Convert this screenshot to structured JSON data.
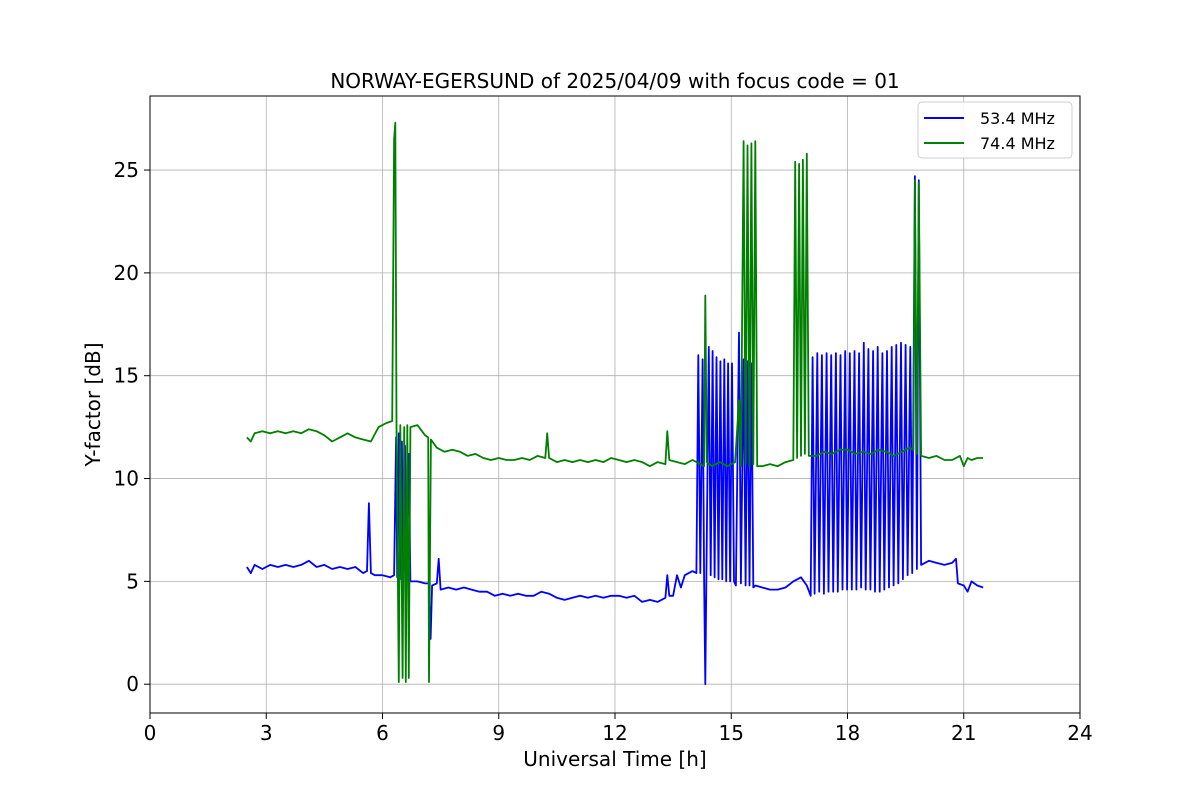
{
  "chart_data": {
    "type": "line",
    "title": "NORWAY-EGERSUND of 2025/04/09 with focus code = 01",
    "xlabel": "Universal Time [h]",
    "ylabel": "Y-factor [dB]",
    "xlim": [
      0,
      24
    ],
    "ylim": [
      -1.4,
      28.6
    ],
    "xticks": [
      0,
      3,
      6,
      9,
      12,
      15,
      18,
      21,
      24
    ],
    "yticks": [
      0,
      5,
      10,
      15,
      20,
      25
    ],
    "grid": true,
    "legend": "top-right",
    "series": [
      {
        "name": "53.4 MHz",
        "color": "#0000ff",
        "points": [
          [
            2.5,
            5.7
          ],
          [
            2.6,
            5.4
          ],
          [
            2.7,
            5.8
          ],
          [
            2.9,
            5.6
          ],
          [
            3.1,
            5.8
          ],
          [
            3.3,
            5.7
          ],
          [
            3.5,
            5.8
          ],
          [
            3.7,
            5.7
          ],
          [
            3.9,
            5.8
          ],
          [
            4.1,
            6.0
          ],
          [
            4.3,
            5.7
          ],
          [
            4.5,
            5.8
          ],
          [
            4.7,
            5.6
          ],
          [
            4.9,
            5.7
          ],
          [
            5.1,
            5.6
          ],
          [
            5.3,
            5.7
          ],
          [
            5.5,
            5.4
          ],
          [
            5.6,
            5.5
          ],
          [
            5.65,
            8.8
          ],
          [
            5.7,
            5.4
          ],
          [
            5.8,
            5.3
          ],
          [
            6.0,
            5.3
          ],
          [
            6.2,
            5.2
          ],
          [
            6.3,
            5.3
          ],
          [
            6.35,
            12.0
          ],
          [
            6.38,
            5.2
          ],
          [
            6.42,
            12.2
          ],
          [
            6.45,
            5.1
          ],
          [
            6.5,
            11.8
          ],
          [
            6.53,
            5.0
          ],
          [
            6.58,
            11.6
          ],
          [
            6.62,
            5.1
          ],
          [
            6.68,
            11.2
          ],
          [
            6.72,
            5.0
          ],
          [
            6.9,
            5.0
          ],
          [
            7.1,
            4.9
          ],
          [
            7.2,
            4.9
          ],
          [
            7.24,
            2.2
          ],
          [
            7.28,
            4.8
          ],
          [
            7.4,
            4.9
          ],
          [
            7.45,
            6.1
          ],
          [
            7.5,
            4.6
          ],
          [
            7.7,
            4.7
          ],
          [
            7.9,
            4.6
          ],
          [
            8.1,
            4.7
          ],
          [
            8.3,
            4.6
          ],
          [
            8.5,
            4.5
          ],
          [
            8.7,
            4.5
          ],
          [
            8.9,
            4.3
          ],
          [
            9.1,
            4.4
          ],
          [
            9.3,
            4.3
          ],
          [
            9.5,
            4.4
          ],
          [
            9.7,
            4.3
          ],
          [
            9.9,
            4.3
          ],
          [
            10.1,
            4.5
          ],
          [
            10.3,
            4.4
          ],
          [
            10.5,
            4.2
          ],
          [
            10.7,
            4.1
          ],
          [
            10.9,
            4.2
          ],
          [
            11.1,
            4.3
          ],
          [
            11.3,
            4.2
          ],
          [
            11.5,
            4.3
          ],
          [
            11.7,
            4.2
          ],
          [
            11.9,
            4.3
          ],
          [
            12.1,
            4.3
          ],
          [
            12.3,
            4.2
          ],
          [
            12.5,
            4.3
          ],
          [
            12.7,
            4.0
          ],
          [
            12.9,
            4.1
          ],
          [
            13.1,
            4.0
          ],
          [
            13.3,
            4.2
          ],
          [
            13.35,
            5.3
          ],
          [
            13.4,
            4.3
          ],
          [
            13.5,
            4.3
          ],
          [
            13.6,
            5.3
          ],
          [
            13.7,
            4.7
          ],
          [
            13.8,
            5.3
          ],
          [
            14.0,
            5.5
          ],
          [
            14.1,
            5.4
          ],
          [
            14.15,
            16.0
          ],
          [
            14.2,
            5.4
          ],
          [
            14.26,
            15.8
          ],
          [
            14.3,
            5.1
          ],
          [
            14.33,
            0.0
          ],
          [
            14.36,
            5.3
          ],
          [
            14.42,
            16.4
          ],
          [
            14.47,
            5.3
          ],
          [
            14.52,
            16.2
          ],
          [
            14.57,
            5.2
          ],
          [
            14.62,
            15.9
          ],
          [
            14.67,
            5.1
          ],
          [
            14.72,
            15.7
          ],
          [
            14.77,
            5.1
          ],
          [
            14.82,
            15.8
          ],
          [
            14.87,
            5.0
          ],
          [
            14.92,
            15.6
          ],
          [
            14.97,
            5.0
          ],
          [
            15.02,
            15.6
          ],
          [
            15.07,
            5.0
          ],
          [
            15.12,
            4.8
          ],
          [
            15.2,
            17.1
          ],
          [
            15.25,
            4.9
          ],
          [
            15.32,
            15.8
          ],
          [
            15.37,
            4.8
          ],
          [
            15.42,
            15.7
          ],
          [
            15.47,
            4.8
          ],
          [
            15.52,
            15.6
          ],
          [
            15.57,
            4.7
          ],
          [
            15.62,
            4.8
          ],
          [
            15.8,
            4.7
          ],
          [
            16.0,
            4.6
          ],
          [
            16.2,
            4.6
          ],
          [
            16.4,
            4.7
          ],
          [
            16.6,
            5.0
          ],
          [
            16.8,
            5.2
          ],
          [
            16.95,
            4.8
          ],
          [
            17.05,
            4.3
          ],
          [
            17.1,
            15.9
          ],
          [
            17.15,
            4.4
          ],
          [
            17.22,
            16.1
          ],
          [
            17.27,
            4.5
          ],
          [
            17.34,
            16.0
          ],
          [
            17.39,
            4.4
          ],
          [
            17.46,
            16.1
          ],
          [
            17.51,
            4.5
          ],
          [
            17.58,
            16.0
          ],
          [
            17.63,
            4.5
          ],
          [
            17.7,
            16.1
          ],
          [
            17.75,
            4.5
          ],
          [
            17.82,
            16.0
          ],
          [
            17.87,
            4.6
          ],
          [
            17.94,
            16.2
          ],
          [
            17.99,
            4.6
          ],
          [
            18.06,
            16.1
          ],
          [
            18.11,
            4.6
          ],
          [
            18.18,
            16.2
          ],
          [
            18.23,
            4.6
          ],
          [
            18.3,
            16.1
          ],
          [
            18.35,
            4.7
          ],
          [
            18.42,
            16.6
          ],
          [
            18.47,
            4.6
          ],
          [
            18.54,
            16.3
          ],
          [
            18.59,
            4.6
          ],
          [
            18.66,
            16.2
          ],
          [
            18.71,
            4.5
          ],
          [
            18.78,
            16.4
          ],
          [
            18.83,
            4.5
          ],
          [
            18.9,
            16.1
          ],
          [
            18.95,
            4.6
          ],
          [
            19.02,
            16.2
          ],
          [
            19.07,
            4.7
          ],
          [
            19.14,
            16.4
          ],
          [
            19.19,
            4.8
          ],
          [
            19.26,
            16.5
          ],
          [
            19.31,
            4.9
          ],
          [
            19.38,
            16.6
          ],
          [
            19.43,
            5.1
          ],
          [
            19.5,
            16.5
          ],
          [
            19.55,
            5.3
          ],
          [
            19.62,
            16.4
          ],
          [
            19.67,
            5.4
          ],
          [
            19.74,
            24.7
          ],
          [
            19.79,
            5.6
          ],
          [
            19.84,
            24.5
          ],
          [
            19.9,
            5.8
          ],
          [
            20.1,
            6.0
          ],
          [
            20.3,
            5.9
          ],
          [
            20.5,
            5.8
          ],
          [
            20.7,
            5.9
          ],
          [
            20.8,
            6.1
          ],
          [
            20.85,
            4.9
          ],
          [
            21.0,
            4.8
          ],
          [
            21.1,
            4.5
          ],
          [
            21.2,
            5.0
          ],
          [
            21.35,
            4.8
          ],
          [
            21.5,
            4.7
          ]
        ]
      },
      {
        "name": "74.4 MHz",
        "color": "#008000",
        "points": [
          [
            2.5,
            12.0
          ],
          [
            2.6,
            11.8
          ],
          [
            2.7,
            12.2
          ],
          [
            2.9,
            12.3
          ],
          [
            3.1,
            12.2
          ],
          [
            3.3,
            12.3
          ],
          [
            3.5,
            12.2
          ],
          [
            3.7,
            12.3
          ],
          [
            3.9,
            12.2
          ],
          [
            4.1,
            12.4
          ],
          [
            4.3,
            12.3
          ],
          [
            4.5,
            12.1
          ],
          [
            4.7,
            11.8
          ],
          [
            4.9,
            12.0
          ],
          [
            5.1,
            12.2
          ],
          [
            5.3,
            12.0
          ],
          [
            5.5,
            11.9
          ],
          [
            5.7,
            11.8
          ],
          [
            5.9,
            12.5
          ],
          [
            6.1,
            12.7
          ],
          [
            6.25,
            12.8
          ],
          [
            6.3,
            26.5
          ],
          [
            6.33,
            27.3
          ],
          [
            6.36,
            12.6
          ],
          [
            6.42,
            0.1
          ],
          [
            6.46,
            12.6
          ],
          [
            6.52,
            0.3
          ],
          [
            6.56,
            12.5
          ],
          [
            6.6,
            0.1
          ],
          [
            6.64,
            12.6
          ],
          [
            6.68,
            0.3
          ],
          [
            6.72,
            12.5
          ],
          [
            6.9,
            12.6
          ],
          [
            7.1,
            12.1
          ],
          [
            7.18,
            12.0
          ],
          [
            7.2,
            0.1
          ],
          [
            7.25,
            11.9
          ],
          [
            7.4,
            11.5
          ],
          [
            7.6,
            11.3
          ],
          [
            7.8,
            11.4
          ],
          [
            8.0,
            11.3
          ],
          [
            8.2,
            11.1
          ],
          [
            8.4,
            11.2
          ],
          [
            8.6,
            11.0
          ],
          [
            8.8,
            10.9
          ],
          [
            9.0,
            11.0
          ],
          [
            9.2,
            10.9
          ],
          [
            9.4,
            10.9
          ],
          [
            9.6,
            11.0
          ],
          [
            9.8,
            10.9
          ],
          [
            10.0,
            11.1
          ],
          [
            10.2,
            11.0
          ],
          [
            10.25,
            12.2
          ],
          [
            10.3,
            11.0
          ],
          [
            10.5,
            10.8
          ],
          [
            10.7,
            10.9
          ],
          [
            10.9,
            10.8
          ],
          [
            11.1,
            10.9
          ],
          [
            11.3,
            10.8
          ],
          [
            11.5,
            10.9
          ],
          [
            11.7,
            10.8
          ],
          [
            11.9,
            11.0
          ],
          [
            12.1,
            10.9
          ],
          [
            12.3,
            10.8
          ],
          [
            12.5,
            10.9
          ],
          [
            12.7,
            10.8
          ],
          [
            12.9,
            10.6
          ],
          [
            13.1,
            10.8
          ],
          [
            13.3,
            10.7
          ],
          [
            13.35,
            12.3
          ],
          [
            13.4,
            10.9
          ],
          [
            13.6,
            10.8
          ],
          [
            13.8,
            10.7
          ],
          [
            14.0,
            10.9
          ],
          [
            14.2,
            10.7
          ],
          [
            14.3,
            10.6
          ],
          [
            14.33,
            18.9
          ],
          [
            14.37,
            10.8
          ],
          [
            14.5,
            10.6
          ],
          [
            14.7,
            10.8
          ],
          [
            14.9,
            10.6
          ],
          [
            15.1,
            10.8
          ],
          [
            15.2,
            13.8
          ],
          [
            15.25,
            10.6
          ],
          [
            15.32,
            26.4
          ],
          [
            15.37,
            10.7
          ],
          [
            15.42,
            26.2
          ],
          [
            15.47,
            10.6
          ],
          [
            15.52,
            26.3
          ],
          [
            15.57,
            10.7
          ],
          [
            15.62,
            26.4
          ],
          [
            15.67,
            10.6
          ],
          [
            15.8,
            10.6
          ],
          [
            16.0,
            10.7
          ],
          [
            16.2,
            10.6
          ],
          [
            16.4,
            10.8
          ],
          [
            16.6,
            10.9
          ],
          [
            16.65,
            25.4
          ],
          [
            16.7,
            11.0
          ],
          [
            16.75,
            25.3
          ],
          [
            16.8,
            11.1
          ],
          [
            16.85,
            25.5
          ],
          [
            16.9,
            11.2
          ],
          [
            16.95,
            25.8
          ],
          [
            17.0,
            11.1
          ],
          [
            17.2,
            11.1
          ],
          [
            17.4,
            11.3
          ],
          [
            17.6,
            11.2
          ],
          [
            17.8,
            11.4
          ],
          [
            18.0,
            11.4
          ],
          [
            18.2,
            11.2
          ],
          [
            18.4,
            11.3
          ],
          [
            18.6,
            11.2
          ],
          [
            18.8,
            11.4
          ],
          [
            19.0,
            11.3
          ],
          [
            19.2,
            11.1
          ],
          [
            19.4,
            11.3
          ],
          [
            19.6,
            11.5
          ],
          [
            19.7,
            11.4
          ],
          [
            19.74,
            24.5
          ],
          [
            19.79,
            11.2
          ],
          [
            19.84,
            24.4
          ],
          [
            19.9,
            11.1
          ],
          [
            20.1,
            11.0
          ],
          [
            20.3,
            11.1
          ],
          [
            20.5,
            10.9
          ],
          [
            20.7,
            10.9
          ],
          [
            20.9,
            11.1
          ],
          [
            21.0,
            10.6
          ],
          [
            21.1,
            11.0
          ],
          [
            21.2,
            10.9
          ],
          [
            21.35,
            11.0
          ],
          [
            21.5,
            11.0
          ]
        ]
      }
    ]
  }
}
